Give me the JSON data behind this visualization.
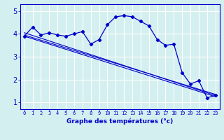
{
  "title": "",
  "xlabel": "Graphe des températures (°c)",
  "ylabel": "",
  "bg_color": "#d4efef",
  "line_color": "#0000cc",
  "grid_color": "#ffffff",
  "ylim": [
    0.7,
    5.3
  ],
  "xlim": [
    -0.5,
    23.5
  ],
  "yticks": [
    1,
    2,
    3,
    4,
    5
  ],
  "xticks": [
    0,
    1,
    2,
    3,
    4,
    5,
    6,
    7,
    8,
    9,
    10,
    11,
    12,
    13,
    14,
    15,
    16,
    17,
    18,
    19,
    20,
    21,
    22,
    23
  ],
  "main_line": {
    "x": [
      0,
      1,
      2,
      3,
      4,
      5,
      6,
      7,
      8,
      9,
      10,
      11,
      12,
      13,
      14,
      15,
      16,
      17,
      18,
      19,
      20,
      21,
      22,
      23
    ],
    "y": [
      3.9,
      4.3,
      3.95,
      4.05,
      3.95,
      3.9,
      4.0,
      4.1,
      3.55,
      3.75,
      4.4,
      4.75,
      4.8,
      4.75,
      4.55,
      4.35,
      3.75,
      3.5,
      3.55,
      2.3,
      1.8,
      1.95,
      1.2,
      1.3
    ]
  },
  "trend_line1": {
    "x": [
      0,
      23
    ],
    "y": [
      3.9,
      1.25
    ]
  },
  "trend_line2": {
    "x": [
      0,
      23
    ],
    "y": [
      3.95,
      1.35
    ]
  },
  "trend_line3": {
    "x": [
      0,
      23
    ],
    "y": [
      4.05,
      1.3
    ]
  }
}
